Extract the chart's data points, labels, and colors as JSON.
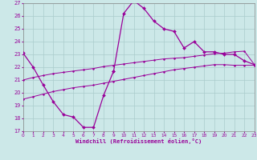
{
  "background_color": "#cce8e8",
  "grid_color": "#aacccc",
  "line_color": "#990099",
  "xlabel": "Windchill (Refroidissement éolien,°C)",
  "ylim": [
    17,
    27
  ],
  "xlim": [
    0,
    23
  ],
  "yticks": [
    17,
    18,
    19,
    20,
    21,
    22,
    23,
    24,
    25,
    26,
    27
  ],
  "xticks": [
    0,
    1,
    2,
    3,
    4,
    5,
    6,
    7,
    8,
    9,
    10,
    11,
    12,
    13,
    14,
    15,
    16,
    17,
    18,
    19,
    20,
    21,
    22,
    23
  ],
  "line1_x": [
    0,
    1,
    2,
    3,
    4,
    5,
    6,
    7,
    8,
    9
  ],
  "line1_y": [
    23.1,
    22.0,
    20.6,
    19.3,
    18.3,
    18.1,
    17.3,
    17.3,
    19.8,
    21.7
  ],
  "line2_x": [
    9,
    10,
    11,
    12,
    13,
    14,
    15,
    16,
    17,
    18,
    19,
    20,
    21,
    22,
    23
  ],
  "line2_y": [
    21.7,
    26.2,
    27.2,
    26.6,
    25.6,
    25.0,
    24.8,
    23.5,
    24.0,
    23.2,
    23.2,
    23.0,
    23.0,
    22.5,
    22.2
  ],
  "line3_x": [
    0,
    1,
    2,
    3,
    4,
    5,
    6,
    7,
    8,
    9,
    10,
    11,
    12,
    13,
    14,
    15,
    16,
    17,
    18,
    19,
    20,
    21,
    22,
    23
  ],
  "line3_y": [
    21.0,
    21.2,
    21.35,
    21.5,
    21.6,
    21.7,
    21.8,
    21.9,
    22.05,
    22.15,
    22.25,
    22.35,
    22.45,
    22.55,
    22.65,
    22.7,
    22.75,
    22.85,
    22.95,
    23.05,
    23.1,
    23.2,
    23.25,
    22.2
  ],
  "line4_x": [
    0,
    1,
    2,
    3,
    4,
    5,
    6,
    7,
    8,
    9,
    10,
    11,
    12,
    13,
    14,
    15,
    16,
    17,
    18,
    19,
    20,
    21,
    22,
    23
  ],
  "line4_y": [
    19.5,
    19.7,
    19.9,
    20.1,
    20.25,
    20.4,
    20.5,
    20.6,
    20.75,
    20.9,
    21.05,
    21.2,
    21.35,
    21.5,
    21.65,
    21.8,
    21.9,
    22.0,
    22.1,
    22.2,
    22.2,
    22.15,
    22.15,
    22.15
  ]
}
